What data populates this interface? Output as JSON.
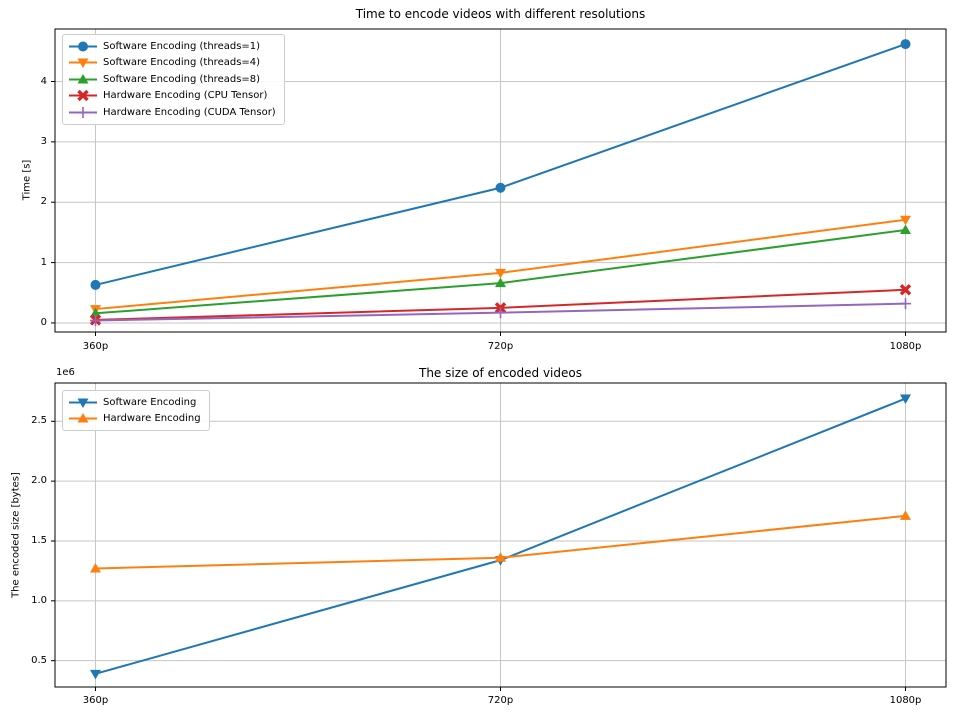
{
  "page": {
    "background": "#ffffff"
  },
  "chart_data": [
    {
      "type": "line",
      "title": "Time to encode videos with different resolutions",
      "xlabel": "",
      "ylabel": "Time [s]",
      "offset_text": "",
      "categories": [
        "360p",
        "720p",
        "1080p"
      ],
      "ytick_values": [
        0,
        1,
        2,
        3,
        4
      ],
      "ytick_labels": [
        "0",
        "1",
        "2",
        "3",
        "4"
      ],
      "ylim": [
        -0.15,
        4.87
      ],
      "grid": true,
      "legend_position": "upper left",
      "series": [
        {
          "name": "Software Encoding (threads=1)",
          "color": "#1f77b4",
          "marker": "circle",
          "values": [
            0.63,
            2.24,
            4.62
          ]
        },
        {
          "name": "Software Encoding (threads=4)",
          "color": "#ff7f0e",
          "marker": "triangle-down",
          "values": [
            0.23,
            0.83,
            1.71
          ]
        },
        {
          "name": "Software Encoding (threads=8)",
          "color": "#2ca02c",
          "marker": "triangle-up",
          "values": [
            0.16,
            0.66,
            1.54
          ]
        },
        {
          "name": "Hardware Encoding (CPU Tensor)",
          "color": "#d62728",
          "marker": "x-filled",
          "values": [
            0.05,
            0.25,
            0.55
          ]
        },
        {
          "name": "Hardware Encoding (CUDA Tensor)",
          "color": "#9467bd",
          "marker": "plus",
          "values": [
            0.04,
            0.17,
            0.32
          ]
        }
      ]
    },
    {
      "type": "line",
      "title": "The size of encoded videos",
      "xlabel": "",
      "ylabel": "The encoded size [bytes]",
      "offset_text": "1e6",
      "categories": [
        "360p",
        "720p",
        "1080p"
      ],
      "ytick_values": [
        500000,
        1000000,
        1500000,
        2000000,
        2500000
      ],
      "ytick_labels": [
        "0.5",
        "1.0",
        "1.5",
        "2.0",
        "2.5"
      ],
      "ylim": [
        280000,
        2820000
      ],
      "grid": true,
      "legend_position": "upper left",
      "series": [
        {
          "name": "Software Encoding",
          "color": "#1f77b4",
          "marker": "triangle-down",
          "values": [
            390000,
            1340000,
            2690000
          ]
        },
        {
          "name": "Hardware Encoding",
          "color": "#ff7f0e",
          "marker": "triangle-up",
          "values": [
            1270000,
            1360000,
            1710000
          ]
        }
      ]
    }
  ]
}
